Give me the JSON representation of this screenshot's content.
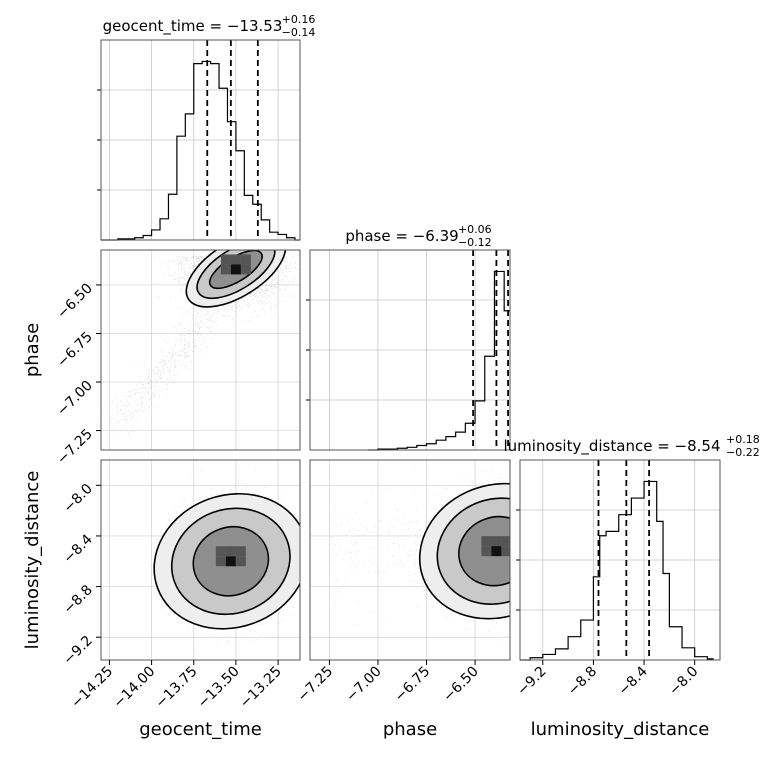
{
  "chart_data": {
    "type": "corner",
    "parameters": [
      {
        "name": "geocent_time",
        "xlabel": "geocent_time",
        "title_main": "geocent_time = −13.53",
        "title_sup": "+0.16",
        "title_sub": "−0.14",
        "range": [
          -14.3,
          -13.12
        ],
        "quantiles": [
          -13.67,
          -13.53,
          -13.37
        ],
        "ticks": [
          -14.25,
          -14.0,
          -13.75,
          -13.5,
          -13.25
        ],
        "tick_labels": [
          "−14.25",
          "−14.00",
          "−13.75",
          "−13.50",
          "−13.25"
        ],
        "hist_edges": [
          -14.3,
          -14.2,
          -14.1,
          -14.05,
          -14.0,
          -13.95,
          -13.9,
          -13.85,
          -13.8,
          -13.75,
          -13.7,
          -13.65,
          -13.6,
          -13.55,
          -13.5,
          -13.45,
          -13.4,
          -13.35,
          -13.3,
          -13.25,
          -13.2,
          -13.15,
          -13.12
        ],
        "hist_counts": [
          0,
          1,
          2,
          4,
          9,
          19,
          41,
          93,
          113,
          158,
          160,
          158,
          136,
          106,
          80,
          40,
          32,
          18,
          7,
          5,
          2,
          0
        ]
      },
      {
        "name": "phase",
        "xlabel": "phase",
        "ylabel": "phase",
        "title_main": "phase = −6.39",
        "title_sup": "+0.06",
        "title_sub": "−0.12",
        "range": [
          -7.35,
          -6.32
        ],
        "quantiles": [
          -6.51,
          -6.39,
          -6.33
        ],
        "ticks": [
          -7.25,
          -7.0,
          -6.75,
          -6.5
        ],
        "tick_labels": [
          "−7.25",
          "−7.00",
          "−6.75",
          "−6.50"
        ],
        "hist_edges": [
          -7.05,
          -7.0,
          -6.95,
          -6.9,
          -6.85,
          -6.8,
          -6.75,
          -6.7,
          -6.65,
          -6.6,
          -6.55,
          -6.5,
          -6.45,
          -6.4,
          -6.35,
          -6.32
        ],
        "hist_counts": [
          0,
          1,
          1,
          2,
          3,
          5,
          7,
          11,
          15,
          20,
          30,
          55,
          105,
          200,
          156
        ]
      },
      {
        "name": "luminosity_distance",
        "xlabel": "luminosity_distance",
        "ylabel": "luminosity_distance",
        "title_main": "luminosity_distance = −8.54",
        "title_sup": "+0.18",
        "title_sub": "−0.22",
        "range": [
          -9.38,
          -7.8
        ],
        "quantiles": [
          -8.76,
          -8.54,
          -8.36
        ],
        "ticks": [
          -9.2,
          -8.8,
          -8.4,
          -8.0
        ],
        "tick_labels": [
          "−9.2",
          "−8.8",
          "−8.4",
          "−8.0"
        ],
        "hist_edges": [
          -9.38,
          -9.3,
          -9.2,
          -9.1,
          -9.0,
          -8.9,
          -8.8,
          -8.75,
          -8.7,
          -8.6,
          -8.5,
          -8.4,
          -8.3,
          -8.25,
          -8.2,
          -8.1,
          -8.0,
          -7.9,
          -7.85
        ],
        "hist_counts": [
          0,
          2,
          5,
          10,
          21,
          36,
          75,
          112,
          116,
          131,
          146,
          161,
          125,
          78,
          30,
          11,
          3,
          1
        ]
      }
    ],
    "density_2d": [
      {
        "x": "geocent_time",
        "y": "phase",
        "mode": [
          -13.5,
          -6.43
        ],
        "contours": 3
      },
      {
        "x": "geocent_time",
        "y": "luminosity_distance",
        "mode": [
          -13.53,
          -8.6
        ],
        "contours": 3
      },
      {
        "x": "phase",
        "y": "luminosity_distance",
        "mode": [
          -6.39,
          -8.52
        ],
        "contours": 3
      }
    ],
    "grid": true
  }
}
